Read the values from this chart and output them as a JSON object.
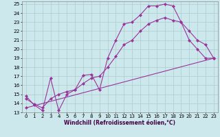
{
  "title": "",
  "xlabel": "Windchill (Refroidissement éolien,°C)",
  "bg_color": "#cce8ec",
  "line_color": "#993399",
  "grid_color": "#aacccc",
  "xlim": [
    -0.5,
    23.5
  ],
  "ylim": [
    13,
    25.3
  ],
  "yticks": [
    13,
    14,
    15,
    16,
    17,
    18,
    19,
    20,
    21,
    22,
    23,
    24,
    25
  ],
  "xticks": [
    0,
    1,
    2,
    3,
    4,
    5,
    6,
    7,
    8,
    9,
    10,
    11,
    12,
    13,
    14,
    15,
    16,
    17,
    18,
    19,
    20,
    21,
    22,
    23
  ],
  "series1_x": [
    0,
    1,
    2,
    3,
    4,
    5,
    6,
    7,
    8,
    9,
    10,
    11,
    12,
    13,
    14,
    15,
    16,
    17,
    18,
    19,
    20,
    21,
    22,
    23
  ],
  "series1_y": [
    14.8,
    13.8,
    13.2,
    16.8,
    13.2,
    15.0,
    15.5,
    17.1,
    17.2,
    15.5,
    19.0,
    21.0,
    22.8,
    23.0,
    23.8,
    24.8,
    24.8,
    25.0,
    24.8,
    23.0,
    21.0,
    20.0,
    19.0,
    19.0
  ],
  "series2_x": [
    0,
    1,
    2,
    3,
    4,
    5,
    6,
    7,
    8,
    9,
    10,
    11,
    12,
    13,
    14,
    15,
    16,
    17,
    18,
    19,
    20,
    21,
    22,
    23
  ],
  "series2_y": [
    14.5,
    13.9,
    13.5,
    14.5,
    15.0,
    15.3,
    15.5,
    16.2,
    16.8,
    17.0,
    18.0,
    19.2,
    20.5,
    21.0,
    22.0,
    22.8,
    23.2,
    23.5,
    23.2,
    23.0,
    22.0,
    21.0,
    20.5,
    19.0
  ],
  "series3_x": [
    0,
    23
  ],
  "series3_y": [
    13.5,
    19.0
  ],
  "xlabel_color": "#440044",
  "xlabel_fontsize": 5.5,
  "tick_fontsize": 5.0,
  "linewidth": 0.8,
  "markersize": 2.2
}
